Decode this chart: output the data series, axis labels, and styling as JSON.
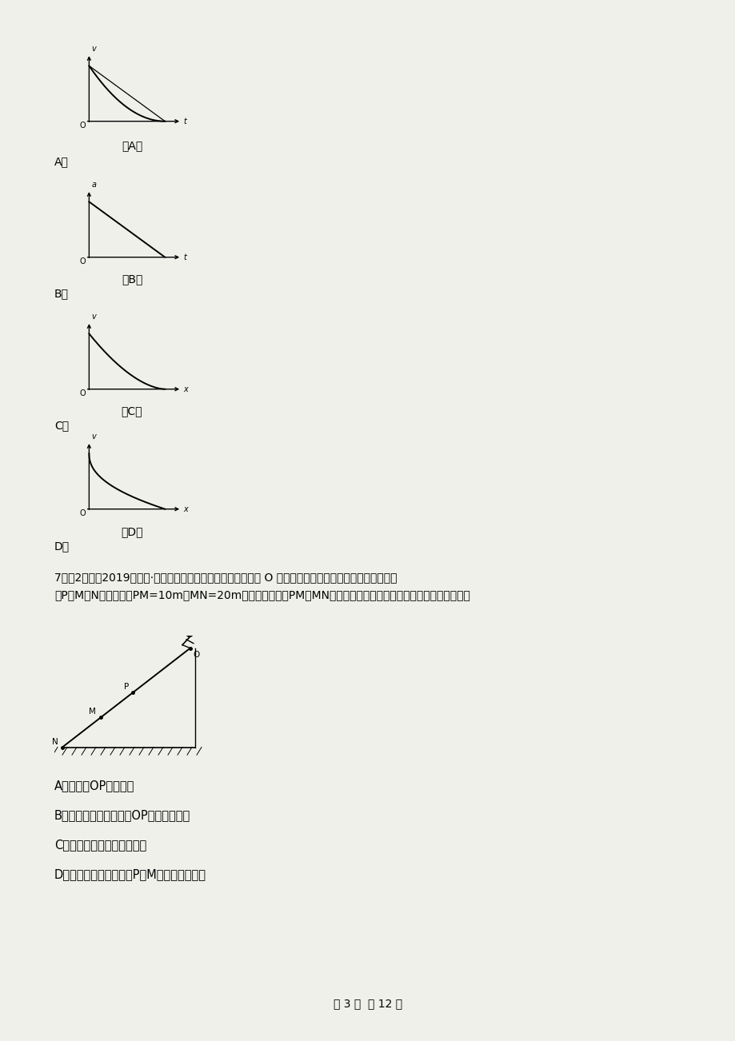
{
  "bg_color": "#f0f0eb",
  "page_width": 9.2,
  "page_height": 13.02,
  "graphs": [
    {
      "label": "A",
      "caption": "（A）",
      "type": "convex_decay",
      "x_label": "t",
      "y_label": "v"
    },
    {
      "label": "B",
      "caption": "（B）",
      "type": "linear_decay",
      "x_label": "t",
      "y_label": "a"
    },
    {
      "label": "C",
      "caption": "（C）",
      "type": "convex_decay2",
      "x_label": "x",
      "y_label": "v"
    },
    {
      "label": "D",
      "caption": "（D）",
      "type": "concave_decay",
      "x_label": "x",
      "y_label": "v"
    }
  ],
  "q7_line1": "7．（2分）（2019高二下·南阳月考）如图所示，滑雪运动员从 O 点由静止开始做匀加速直线运动，先后经",
  "q7_line2": "过P、M、N三点，已知PM=10m，MN=20m，且运动员经过PM、MN两段的时间相等，下列说法不正确的是（　　）",
  "choice_A": "A．能求出OP间的距离",
  "choice_B": "B．不能求出运动员经过OP段所用的时间",
  "choice_C": "C．不能求出运动员的加速度",
  "choice_D": "D．不能求出运动员经过P、M两点的速度之比",
  "footer": "第 3 页  共 12 页",
  "letter_A": "A．",
  "letter_B": "B．",
  "letter_C": "C．",
  "letter_D": "D．"
}
